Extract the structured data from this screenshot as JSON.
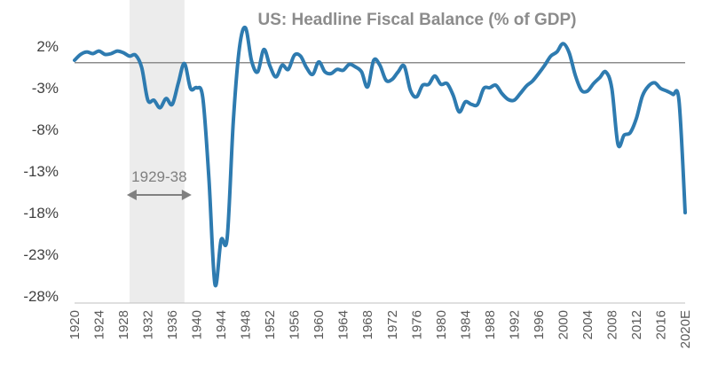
{
  "chart_data": {
    "type": "line",
    "title": "US: Headline Fiscal Balance (% of GDP)",
    "xlabel": "",
    "ylabel": "",
    "series": [
      {
        "values": [
          {
            "x": 1920,
            "y": 0.3
          },
          {
            "x": 1921,
            "y": 1.0
          },
          {
            "x": 1922,
            "y": 1.3
          },
          {
            "x": 1923,
            "y": 1.1
          },
          {
            "x": 1924,
            "y": 1.4
          },
          {
            "x": 1925,
            "y": 1.0
          },
          {
            "x": 1926,
            "y": 1.1
          },
          {
            "x": 1927,
            "y": 1.4
          },
          {
            "x": 1928,
            "y": 1.2
          },
          {
            "x": 1929,
            "y": 0.8
          },
          {
            "x": 1930,
            "y": 0.9
          },
          {
            "x": 1931,
            "y": -0.6
          },
          {
            "x": 1932,
            "y": -4.5
          },
          {
            "x": 1933,
            "y": -4.5
          },
          {
            "x": 1934,
            "y": -5.4
          },
          {
            "x": 1935,
            "y": -4.3
          },
          {
            "x": 1936,
            "y": -5.0
          },
          {
            "x": 1937,
            "y": -2.4
          },
          {
            "x": 1938,
            "y": -0.1
          },
          {
            "x": 1939,
            "y": -3.1
          },
          {
            "x": 1940,
            "y": -3.0
          },
          {
            "x": 1941,
            "y": -4.2
          },
          {
            "x": 1942,
            "y": -13.9
          },
          {
            "x": 1943,
            "y": -26.6
          },
          {
            "x": 1944,
            "y": -21.3
          },
          {
            "x": 1945,
            "y": -21.0
          },
          {
            "x": 1946,
            "y": -7.0
          },
          {
            "x": 1947,
            "y": 1.8
          },
          {
            "x": 1948,
            "y": 4.2
          },
          {
            "x": 1949,
            "y": 0.2
          },
          {
            "x": 1950,
            "y": -1.1
          },
          {
            "x": 1951,
            "y": 1.6
          },
          {
            "x": 1952,
            "y": -0.4
          },
          {
            "x": 1953,
            "y": -1.7
          },
          {
            "x": 1954,
            "y": -0.3
          },
          {
            "x": 1955,
            "y": -0.8
          },
          {
            "x": 1956,
            "y": 0.9
          },
          {
            "x": 1957,
            "y": 0.8
          },
          {
            "x": 1958,
            "y": -0.6
          },
          {
            "x": 1959,
            "y": -1.4
          },
          {
            "x": 1960,
            "y": 0.1
          },
          {
            "x": 1961,
            "y": -1.1
          },
          {
            "x": 1962,
            "y": -1.3
          },
          {
            "x": 1963,
            "y": -0.8
          },
          {
            "x": 1964,
            "y": -0.9
          },
          {
            "x": 1965,
            "y": -0.2
          },
          {
            "x": 1966,
            "y": -0.5
          },
          {
            "x": 1967,
            "y": -1.1
          },
          {
            "x": 1968,
            "y": -2.9
          },
          {
            "x": 1969,
            "y": 0.3
          },
          {
            "x": 1970,
            "y": -0.3
          },
          {
            "x": 1971,
            "y": -2.1
          },
          {
            "x": 1972,
            "y": -2.0
          },
          {
            "x": 1973,
            "y": -1.1
          },
          {
            "x": 1974,
            "y": -0.4
          },
          {
            "x": 1975,
            "y": -3.3
          },
          {
            "x": 1976,
            "y": -4.1
          },
          {
            "x": 1977,
            "y": -2.7
          },
          {
            "x": 1978,
            "y": -2.6
          },
          {
            "x": 1979,
            "y": -1.6
          },
          {
            "x": 1980,
            "y": -2.6
          },
          {
            "x": 1981,
            "y": -2.5
          },
          {
            "x": 1982,
            "y": -3.9
          },
          {
            "x": 1983,
            "y": -5.9
          },
          {
            "x": 1984,
            "y": -4.7
          },
          {
            "x": 1985,
            "y": -5.0
          },
          {
            "x": 1986,
            "y": -5.0
          },
          {
            "x": 1987,
            "y": -3.1
          },
          {
            "x": 1988,
            "y": -3.0
          },
          {
            "x": 1989,
            "y": -2.7
          },
          {
            "x": 1990,
            "y": -3.7
          },
          {
            "x": 1991,
            "y": -4.4
          },
          {
            "x": 1992,
            "y": -4.5
          },
          {
            "x": 1993,
            "y": -3.7
          },
          {
            "x": 1994,
            "y": -2.8
          },
          {
            "x": 1995,
            "y": -2.2
          },
          {
            "x": 1996,
            "y": -1.3
          },
          {
            "x": 1997,
            "y": -0.3
          },
          {
            "x": 1998,
            "y": 0.8
          },
          {
            "x": 1999,
            "y": 1.3
          },
          {
            "x": 2000,
            "y": 2.3
          },
          {
            "x": 2001,
            "y": 1.2
          },
          {
            "x": 2002,
            "y": -1.5
          },
          {
            "x": 2003,
            "y": -3.3
          },
          {
            "x": 2004,
            "y": -3.4
          },
          {
            "x": 2005,
            "y": -2.5
          },
          {
            "x": 2006,
            "y": -1.8
          },
          {
            "x": 2007,
            "y": -1.1
          },
          {
            "x": 2008,
            "y": -3.1
          },
          {
            "x": 2009,
            "y": -9.8
          },
          {
            "x": 2010,
            "y": -8.7
          },
          {
            "x": 2011,
            "y": -8.4
          },
          {
            "x": 2012,
            "y": -6.7
          },
          {
            "x": 2013,
            "y": -4.0
          },
          {
            "x": 2014,
            "y": -2.8
          },
          {
            "x": 2015,
            "y": -2.4
          },
          {
            "x": 2016,
            "y": -3.1
          },
          {
            "x": 2017,
            "y": -3.4
          },
          {
            "x": 2018,
            "y": -3.8
          },
          {
            "x": 2019,
            "y": -4.6
          },
          {
            "x": 2020,
            "y": -18.0
          }
        ]
      }
    ],
    "x_ticks": [
      "1920",
      "1924",
      "1928",
      "1932",
      "1936",
      "1940",
      "1944",
      "1948",
      "1952",
      "1956",
      "1960",
      "1964",
      "1968",
      "1972",
      "1976",
      "1980",
      "1984",
      "1988",
      "1992",
      "1996",
      "2000",
      "2004",
      "2008",
      "2012",
      "2016",
      "2020E"
    ],
    "y_ticks": [
      "2%",
      "-3%",
      "-8%",
      "-13%",
      "-18%",
      "-23%",
      "-28%"
    ],
    "y_tick_values": [
      2,
      -3,
      -8,
      -13,
      -18,
      -23,
      -28
    ],
    "xlim": [
      1920,
      2020
    ],
    "ylim": [
      -28,
      4
    ],
    "grid": false,
    "legend": "none",
    "line_color": "#2e7bb0",
    "shaded_region": {
      "start": 1929,
      "end": 1938,
      "label": "1929-38",
      "color": "#ececec"
    }
  }
}
